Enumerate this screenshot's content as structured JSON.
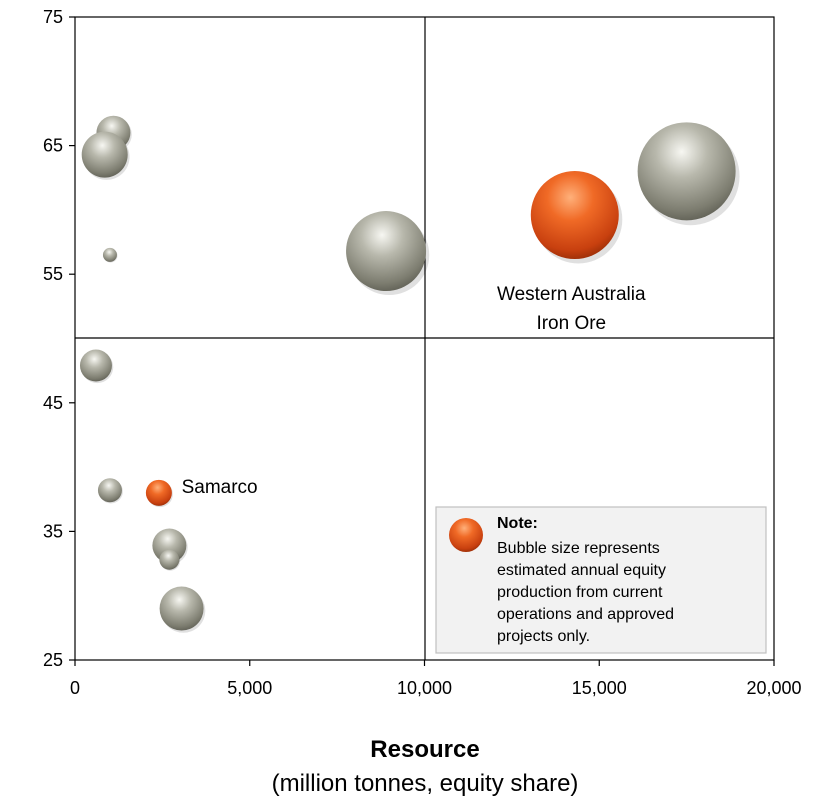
{
  "chart_data": {
    "type": "scatter",
    "xlabel": "Resource",
    "xlabel_sub": "(million tonnes, equity share)",
    "ylabel": "",
    "xlim": [
      0,
      20000
    ],
    "ylim": [
      25,
      75
    ],
    "x_ticks": [
      0,
      5000,
      10000,
      15000,
      20000
    ],
    "x_tick_labels": [
      "0",
      "5,000",
      "10,000",
      "15,000",
      "20,000"
    ],
    "y_ticks": [
      25,
      35,
      45,
      55,
      65,
      75
    ],
    "y_tick_labels": [
      "25",
      "35",
      "45",
      "55",
      "65",
      "75"
    ],
    "quadrant_lines": {
      "x": 10000,
      "y": 50
    },
    "points": [
      {
        "x": 1100,
        "y": 66.0,
        "size": 17,
        "color": "gray"
      },
      {
        "x": 850,
        "y": 64.3,
        "size": 23,
        "color": "gray"
      },
      {
        "x": 1000,
        "y": 56.5,
        "size": 7,
        "color": "gray"
      },
      {
        "x": 8900,
        "y": 56.8,
        "size": 40,
        "color": "gray"
      },
      {
        "x": 17500,
        "y": 63.0,
        "size": 49,
        "color": "gray"
      },
      {
        "x": 14300,
        "y": 59.6,
        "size": 44,
        "color": "orange",
        "label": "Western Australia Iron Ore"
      },
      {
        "x": 600,
        "y": 47.9,
        "size": 16,
        "color": "gray"
      },
      {
        "x": 1000,
        "y": 38.2,
        "size": 12,
        "color": "gray"
      },
      {
        "x": 2400,
        "y": 38.0,
        "size": 13,
        "color": "orange",
        "label": "Samarco"
      },
      {
        "x": 2700,
        "y": 33.9,
        "size": 17,
        "color": "gray"
      },
      {
        "x": 2700,
        "y": 32.8,
        "size": 10,
        "color": "gray"
      },
      {
        "x": 3050,
        "y": 29.0,
        "size": 22,
        "color": "gray"
      }
    ],
    "annotations": [
      {
        "lines": [
          "Western Australia",
          "Iron Ore"
        ],
        "x": 14200,
        "y": 53.0,
        "anchor": "middle"
      },
      {
        "lines": [
          "Samarco"
        ],
        "x": 3050,
        "y": 38.0,
        "anchor": "start"
      }
    ],
    "note": {
      "title": "Note:",
      "lines": [
        "Bubble size represents",
        "estimated annual equity",
        "production from current",
        "operations and approved",
        "projects only."
      ]
    },
    "colors": {
      "gray": "#9a9a8c",
      "orange": "#e2561b",
      "axis": "#000000",
      "note_bg": "#f2f2f2",
      "note_border": "#c0c0c0"
    }
  }
}
